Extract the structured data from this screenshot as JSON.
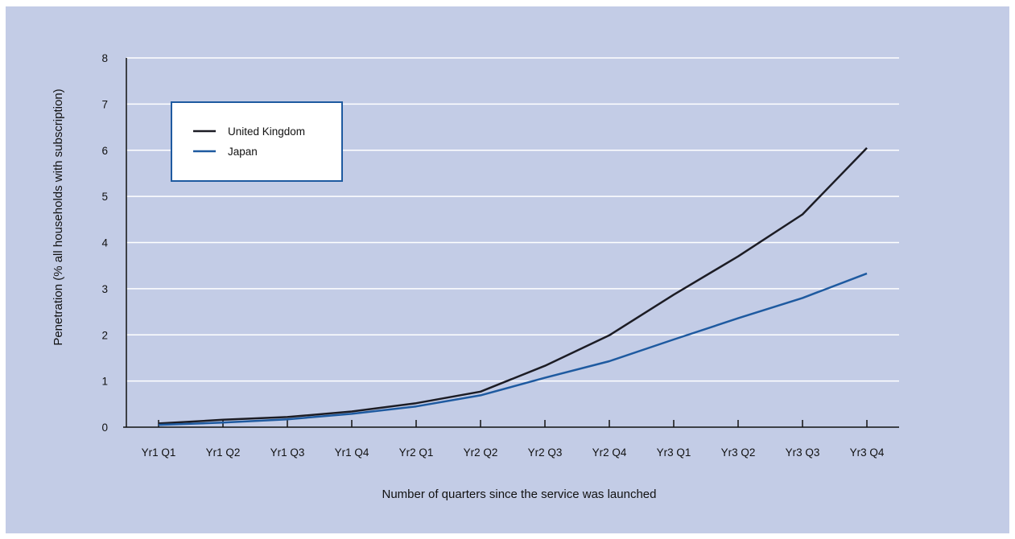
{
  "colors": {
    "background": "#c3cce6",
    "gridline": "#ffffff",
    "axis": "#111111",
    "united_kingdom": "#1c1c24",
    "japan": "#1e5aa0",
    "legend_border": "#1e5aa0",
    "legend_fill": "#ffffff"
  },
  "chart_data": {
    "type": "line",
    "title": "",
    "xlabel": "Number of quarters since the service was launched",
    "ylabel": "Penetration (% all households with subscription)",
    "categories": [
      "Yr1 Q1",
      "Yr1 Q2",
      "Yr1 Q3",
      "Yr1 Q4",
      "Yr2 Q1",
      "Yr2 Q2",
      "Yr2 Q3",
      "Yr2 Q4",
      "Yr3 Q1",
      "Yr3 Q2",
      "Yr3 Q3",
      "Yr3 Q4"
    ],
    "y_ticks": [
      "0",
      "1",
      "2",
      "3",
      "4",
      "5",
      "6",
      "7",
      "8"
    ],
    "ylim": [
      0,
      8
    ],
    "grid": true,
    "legend_position": "top-left",
    "series": [
      {
        "name": "United Kingdom",
        "color": "#1c1c24",
        "values": [
          0.08,
          0.16,
          0.22,
          0.34,
          0.52,
          0.77,
          1.33,
          1.99,
          2.87,
          3.7,
          4.61,
          6.05
        ]
      },
      {
        "name": "Japan",
        "color": "#1e5aa0",
        "values": [
          0.05,
          0.1,
          0.17,
          0.29,
          0.45,
          0.69,
          1.07,
          1.43,
          1.9,
          2.36,
          2.8,
          3.33
        ]
      }
    ]
  }
}
